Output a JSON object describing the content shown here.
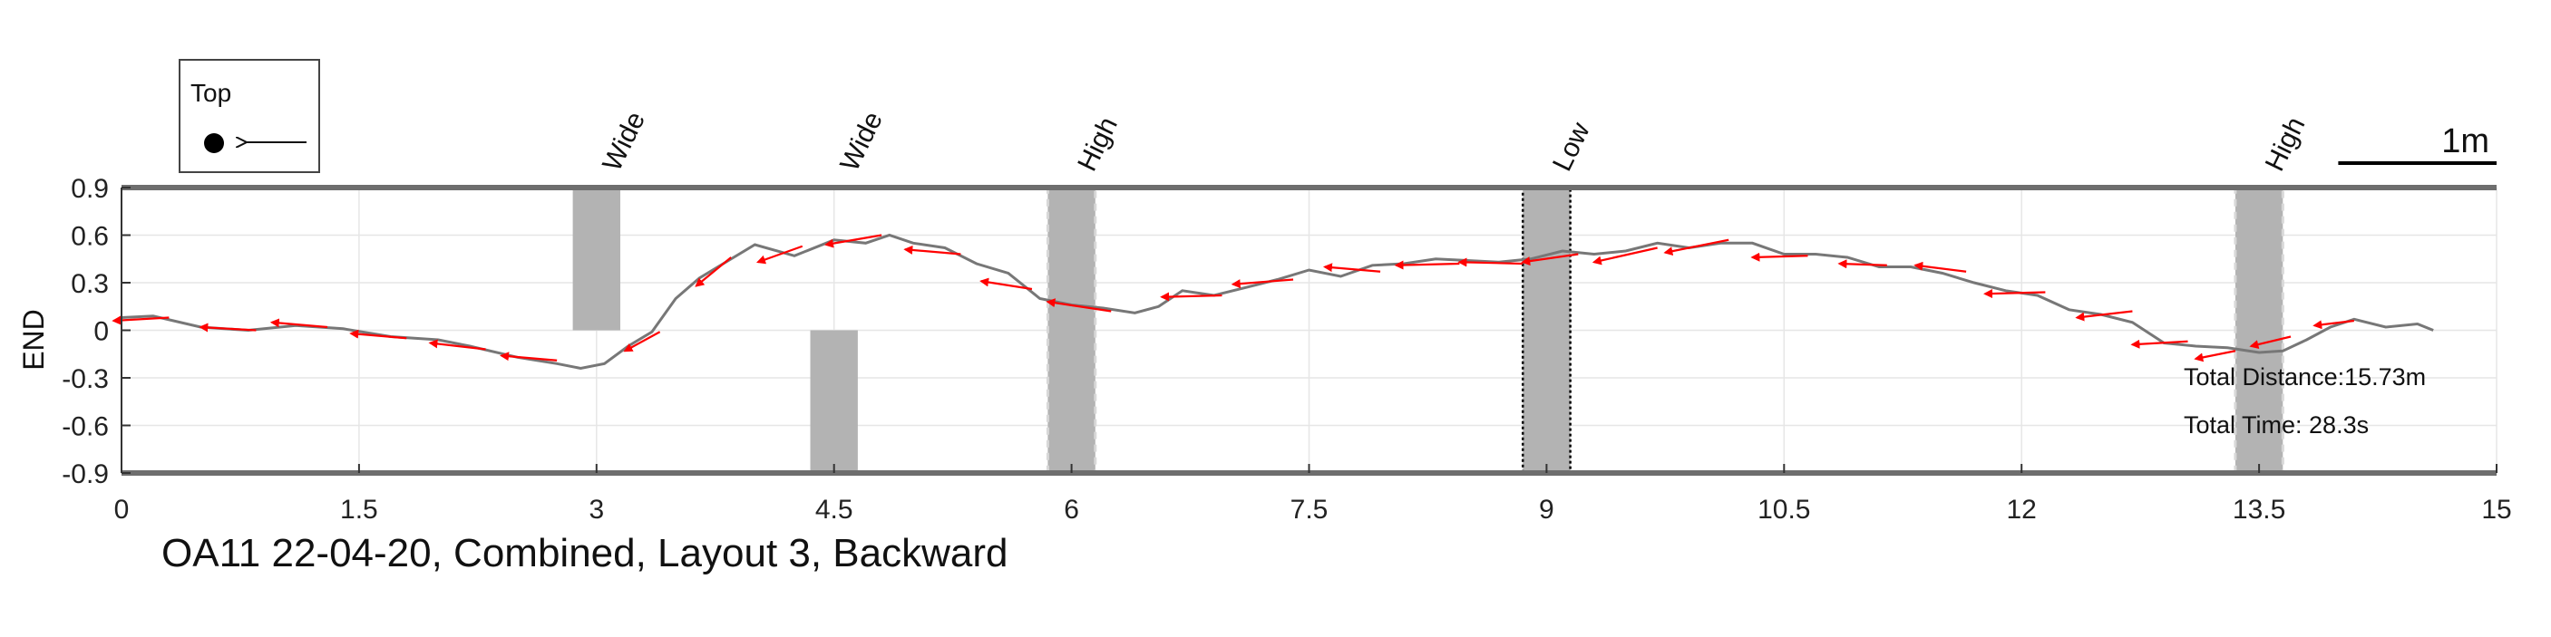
{
  "chart_data": {
    "type": "line",
    "title": "OA11 22-04-20, Combined, Layout 3, Backward",
    "xlabel": "",
    "ylabel": "END",
    "xlim": [
      0,
      15
    ],
    "ylim": [
      -0.9,
      0.9
    ],
    "x_ticks": [
      "0",
      "1.5",
      "3",
      "4.5",
      "6",
      "7.5",
      "9",
      "10.5",
      "12",
      "13.5",
      "15"
    ],
    "y_ticks": [
      "0.9",
      "0.6",
      "0.3",
      "0",
      "-0.3",
      "-0.6",
      "-0.9"
    ],
    "grid": true,
    "line_color": "#777777",
    "arrow_color": "#ff0000",
    "obstacle_color": "#b3b3b3",
    "path": {
      "x": [
        0.0,
        0.2,
        0.5,
        0.8,
        1.1,
        1.4,
        1.7,
        2.0,
        2.2,
        2.5,
        2.75,
        2.9,
        3.05,
        3.2,
        3.35,
        3.5,
        3.65,
        3.8,
        4.0,
        4.25,
        4.5,
        4.7,
        4.85,
        5.0,
        5.2,
        5.4,
        5.6,
        5.8,
        6.0,
        6.2,
        6.4,
        6.55,
        6.7,
        6.9,
        7.1,
        7.3,
        7.5,
        7.7,
        7.9,
        8.1,
        8.3,
        8.5,
        8.7,
        8.9,
        9.1,
        9.3,
        9.5,
        9.7,
        9.9,
        10.1,
        10.3,
        10.5,
        10.7,
        10.9,
        11.1,
        11.3,
        11.5,
        11.7,
        11.9,
        12.1,
        12.3,
        12.5,
        12.7,
        12.9,
        13.1,
        13.3,
        13.5,
        13.65,
        13.8,
        13.95,
        14.1,
        14.3,
        14.5,
        14.6
      ],
      "y": [
        0.08,
        0.09,
        0.02,
        0.0,
        0.03,
        0.01,
        -0.04,
        -0.06,
        -0.1,
        -0.17,
        -0.21,
        -0.24,
        -0.21,
        -0.1,
        -0.01,
        0.2,
        0.33,
        0.42,
        0.54,
        0.47,
        0.57,
        0.55,
        0.6,
        0.55,
        0.52,
        0.42,
        0.36,
        0.2,
        0.16,
        0.14,
        0.11,
        0.15,
        0.25,
        0.22,
        0.27,
        0.32,
        0.38,
        0.34,
        0.41,
        0.42,
        0.45,
        0.44,
        0.43,
        0.45,
        0.5,
        0.48,
        0.5,
        0.55,
        0.52,
        0.55,
        0.55,
        0.48,
        0.48,
        0.46,
        0.4,
        0.4,
        0.36,
        0.3,
        0.25,
        0.22,
        0.13,
        0.1,
        0.05,
        -0.08,
        -0.1,
        -0.11,
        -0.14,
        -0.13,
        -0.06,
        0.02,
        0.07,
        0.02,
        0.04,
        0.0
      ]
    },
    "heading_arrows": [
      {
        "x": 0.3,
        "y": 0.08,
        "dx": -0.35,
        "dy": -0.02
      },
      {
        "x": 0.85,
        "y": 0.0,
        "dx": -0.35,
        "dy": 0.02
      },
      {
        "x": 1.3,
        "y": 0.02,
        "dx": -0.35,
        "dy": 0.03
      },
      {
        "x": 1.8,
        "y": -0.05,
        "dx": -0.35,
        "dy": 0.03
      },
      {
        "x": 2.3,
        "y": -0.12,
        "dx": -0.35,
        "dy": 0.04
      },
      {
        "x": 2.75,
        "y": -0.19,
        "dx": -0.35,
        "dy": 0.03
      },
      {
        "x": 3.4,
        "y": -0.01,
        "dx": -0.22,
        "dy": -0.12
      },
      {
        "x": 3.85,
        "y": 0.46,
        "dx": -0.22,
        "dy": -0.18
      },
      {
        "x": 4.3,
        "y": 0.53,
        "dx": -0.28,
        "dy": -0.1
      },
      {
        "x": 4.8,
        "y": 0.6,
        "dx": -0.35,
        "dy": -0.06
      },
      {
        "x": 5.3,
        "y": 0.48,
        "dx": -0.35,
        "dy": 0.03
      },
      {
        "x": 5.75,
        "y": 0.26,
        "dx": -0.32,
        "dy": 0.05
      },
      {
        "x": 6.25,
        "y": 0.12,
        "dx": -0.4,
        "dy": 0.06
      },
      {
        "x": 6.95,
        "y": 0.22,
        "dx": -0.38,
        "dy": -0.01
      },
      {
        "x": 7.4,
        "y": 0.32,
        "dx": -0.38,
        "dy": -0.03
      },
      {
        "x": 7.95,
        "y": 0.37,
        "dx": -0.35,
        "dy": 0.03
      },
      {
        "x": 8.45,
        "y": 0.42,
        "dx": -0.4,
        "dy": -0.01
      },
      {
        "x": 8.85,
        "y": 0.42,
        "dx": -0.4,
        "dy": 0.01
      },
      {
        "x": 9.2,
        "y": 0.48,
        "dx": -0.35,
        "dy": -0.05
      },
      {
        "x": 9.7,
        "y": 0.52,
        "dx": -0.4,
        "dy": -0.09
      },
      {
        "x": 10.15,
        "y": 0.57,
        "dx": -0.4,
        "dy": -0.08
      },
      {
        "x": 10.65,
        "y": 0.47,
        "dx": -0.35,
        "dy": -0.01
      },
      {
        "x": 11.15,
        "y": 0.41,
        "dx": -0.3,
        "dy": 0.01
      },
      {
        "x": 11.65,
        "y": 0.37,
        "dx": -0.32,
        "dy": 0.04
      },
      {
        "x": 12.15,
        "y": 0.24,
        "dx": -0.38,
        "dy": -0.01
      },
      {
        "x": 12.7,
        "y": 0.12,
        "dx": -0.35,
        "dy": -0.04
      },
      {
        "x": 13.05,
        "y": -0.07,
        "dx": -0.35,
        "dy": -0.02
      },
      {
        "x": 13.35,
        "y": -0.13,
        "dx": -0.25,
        "dy": -0.05
      },
      {
        "x": 13.7,
        "y": -0.04,
        "dx": -0.25,
        "dy": -0.06
      },
      {
        "x": 14.1,
        "y": 0.06,
        "dx": -0.25,
        "dy": -0.03
      }
    ],
    "obstacles": [
      {
        "label": "Wide",
        "x0": 2.85,
        "x1": 3.15,
        "y0": 0.0,
        "y1": 0.9,
        "style": "solid"
      },
      {
        "label": "Wide",
        "x0": 4.35,
        "x1": 4.65,
        "y0": -0.9,
        "y1": 0.0,
        "style": "solid"
      },
      {
        "label": "High",
        "x0": 5.85,
        "x1": 6.15,
        "y0": -0.9,
        "y1": 0.9,
        "style": "dashed"
      },
      {
        "label": "Low",
        "x0": 8.85,
        "x1": 9.15,
        "y0": -0.9,
        "y1": 0.9,
        "style": "dotted"
      },
      {
        "label": "High",
        "x0": 13.35,
        "x1": 13.65,
        "y0": -0.9,
        "y1": 0.9,
        "style": "dashed"
      }
    ],
    "annotations": {
      "total_distance": "Total Distance:15.73m",
      "total_time": "Total Time: 28.3s"
    },
    "legend": {
      "title": "Top",
      "placement": "top-left"
    },
    "scale_bar": {
      "label": "1m",
      "length_data_units": 1.0
    }
  }
}
